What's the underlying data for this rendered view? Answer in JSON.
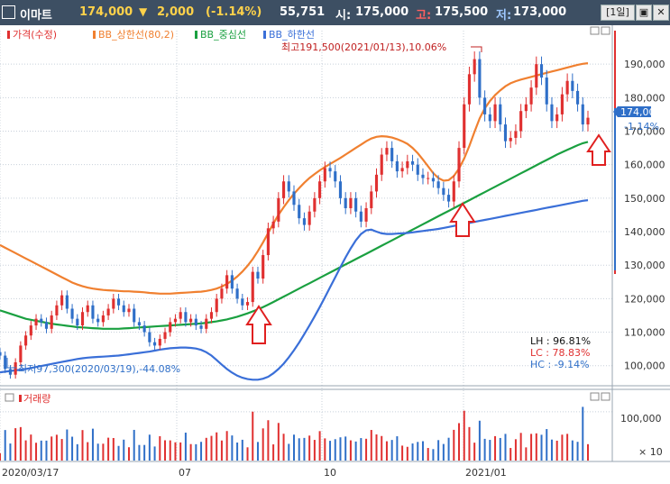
{
  "header": {
    "name": "이마트",
    "price": "174,000",
    "arrow": "▼",
    "change": "2,000",
    "change_pct": "(-1.14%)",
    "volume": "55,751",
    "open_label": "시:",
    "open": "175,000",
    "high_label": "고:",
    "high": "175,500",
    "low_label": "저:",
    "low": "173,000",
    "period_button": "[1일]"
  },
  "legend": {
    "price": "가격(수정)",
    "upper": "BB_상한선(80,2)",
    "mid": "BB_중심선",
    "lower": "BB_하한선"
  },
  "annotations": {
    "max": "최고191,500(2021/01/13),10.06%",
    "min": "최저97,300(2020/03/19),-44.08%",
    "price_tag": "174,000",
    "price_tag_pct": "-1.14%",
    "lh": "LH : 96.81%",
    "lc": "LC : 78.83%",
    "hc": "HC : -9.14%"
  },
  "volume_panel": {
    "title": "거래량",
    "tick": "100,000",
    "multiplier": "× 10"
  },
  "colors": {
    "up": "#e03030",
    "down": "#2f6fc8",
    "upper_band": "#f08030",
    "mid_band": "#1aa040",
    "lower_band": "#3a6fd8",
    "header_bg": "#3d4f63"
  },
  "chart_data": {
    "type": "line",
    "x_labels": [
      "2020/03/17",
      "07",
      "10",
      "2021/01"
    ],
    "y_ticks": [
      "190,000",
      "180,000",
      "170,000",
      "160,000",
      "150,000",
      "140,000",
      "130,000",
      "120,000",
      "110,000",
      "100,000"
    ],
    "y_range": [
      94000,
      200000
    ],
    "series": [
      {
        "name": "가격(수정)",
        "values": [
          103000,
          99000,
          97300,
          101000,
          106000,
          109000,
          112000,
          114000,
          113000,
          111000,
          115000,
          118000,
          121000,
          117000,
          114000,
          112000,
          116000,
          118000,
          114000,
          113000,
          115000,
          117000,
          120000,
          118000,
          116000,
          117000,
          113000,
          112000,
          110000,
          107000,
          106000,
          108000,
          110000,
          113000,
          114000,
          116000,
          113000,
          114000,
          112000,
          111000,
          114000,
          116000,
          120000,
          123000,
          127000,
          123000,
          120000,
          118000,
          119000,
          128000,
          126000,
          133000,
          141000,
          143000,
          150000,
          155000,
          152000,
          148000,
          144000,
          142000,
          146000,
          150000,
          155000,
          159000,
          158000,
          155000,
          150000,
          147000,
          150000,
          146000,
          143000,
          147000,
          152000,
          157000,
          163000,
          165000,
          161000,
          158000,
          159000,
          161000,
          160000,
          157000,
          156000,
          156000,
          155000,
          153000,
          151000,
          149000,
          155000,
          165000,
          178000,
          187000,
          191500,
          180000,
          175000,
          173000,
          178000,
          172000,
          167000,
          168000,
          170000,
          176000,
          178000,
          183000,
          190000,
          186000,
          178000,
          173000,
          175000,
          181000,
          185000,
          182000,
          178000,
          172000,
          174000
        ]
      },
      {
        "name": "BB_상한선(80,2)",
        "values": [
          136000,
          135200,
          134400,
          133600,
          132800,
          132000,
          131200,
          130400,
          129600,
          128800,
          128000,
          127200,
          126400,
          125600,
          124800,
          124200,
          123700,
          123300,
          123000,
          122800,
          122600,
          122500,
          122400,
          122300,
          122200,
          122200,
          122100,
          122000,
          121900,
          121700,
          121600,
          121500,
          121500,
          121500,
          121600,
          121700,
          121800,
          121900,
          122000,
          122100,
          122300,
          122600,
          123000,
          123600,
          124400,
          125400,
          126600,
          128100,
          129800,
          131800,
          134200,
          136800,
          139600,
          142400,
          145000,
          147300,
          149400,
          151300,
          153000,
          154600,
          156000,
          157200,
          158300,
          159300,
          160200,
          161100,
          162000,
          163000,
          164000,
          165000,
          166000,
          167000,
          167800,
          168300,
          168500,
          168400,
          168100,
          167600,
          167000,
          166200,
          165000,
          163400,
          161500,
          159500,
          157500,
          156000,
          155200,
          155400,
          156600,
          158800,
          161800,
          165600,
          169800,
          173800,
          176800,
          179000,
          180800,
          182200,
          183400,
          184300,
          184900,
          185400,
          185800,
          186200,
          186600,
          187000,
          187400,
          187800,
          188200,
          188600,
          189000,
          189400,
          189800,
          190100,
          190300
        ]
      },
      {
        "name": "BB_중심선",
        "values": [
          116500,
          116000,
          115500,
          115000,
          114500,
          114000,
          113700,
          113400,
          113100,
          112800,
          112500,
          112300,
          112100,
          111900,
          111700,
          111500,
          111400,
          111300,
          111200,
          111100,
          111000,
          111000,
          111000,
          111000,
          111100,
          111200,
          111300,
          111400,
          111500,
          111600,
          111700,
          111800,
          111900,
          112000,
          112100,
          112200,
          112300,
          112400,
          112500,
          112600,
          112800,
          113000,
          113200,
          113500,
          113800,
          114200,
          114600,
          115100,
          115600,
          116200,
          116800,
          117500,
          118200,
          119000,
          119800,
          120600,
          121400,
          122200,
          123000,
          123800,
          124600,
          125400,
          126200,
          127000,
          127800,
          128600,
          129400,
          130200,
          131000,
          131800,
          132600,
          133400,
          134200,
          135000,
          135800,
          136600,
          137400,
          138200,
          139000,
          139800,
          140600,
          141400,
          142200,
          143000,
          143800,
          144600,
          145400,
          146200,
          147000,
          147800,
          148600,
          149400,
          150200,
          151000,
          151800,
          152600,
          153400,
          154200,
          155000,
          155800,
          156600,
          157400,
          158200,
          159000,
          159800,
          160600,
          161400,
          162200,
          163000,
          163700,
          164400,
          165100,
          165800,
          166400,
          166800
        ]
      },
      {
        "name": "BB_하한선",
        "values": [
          98000,
          98200,
          98400,
          98600,
          98800,
          99000,
          99300,
          99600,
          99900,
          100200,
          100500,
          100800,
          101100,
          101400,
          101700,
          102000,
          102200,
          102400,
          102500,
          102600,
          102700,
          102800,
          102900,
          103000,
          103200,
          103400,
          103600,
          103800,
          104000,
          104200,
          104500,
          104800,
          105000,
          105200,
          105300,
          105400,
          105400,
          105300,
          105100,
          104700,
          104000,
          103000,
          101700,
          100300,
          99000,
          97900,
          97000,
          96400,
          96000,
          95800,
          95800,
          96100,
          96700,
          97700,
          99000,
          100600,
          102500,
          104600,
          106900,
          109400,
          112000,
          114700,
          117500,
          120400,
          123400,
          126400,
          129400,
          132300,
          135000,
          137400,
          139300,
          140400,
          140600,
          140000,
          139500,
          139300,
          139300,
          139400,
          139500,
          139600,
          139800,
          140000,
          140200,
          140400,
          140600,
          140800,
          141100,
          141400,
          141700,
          142000,
          142300,
          142600,
          142900,
          143200,
          143500,
          143800,
          144100,
          144400,
          144700,
          145000,
          145300,
          145600,
          145900,
          146200,
          146500,
          146800,
          147100,
          147400,
          147700,
          148000,
          148300,
          148600,
          148900,
          149200,
          149400
        ]
      }
    ],
    "volume_series": {
      "name": "거래량",
      "ylim": [
        0,
        120000
      ]
    }
  }
}
